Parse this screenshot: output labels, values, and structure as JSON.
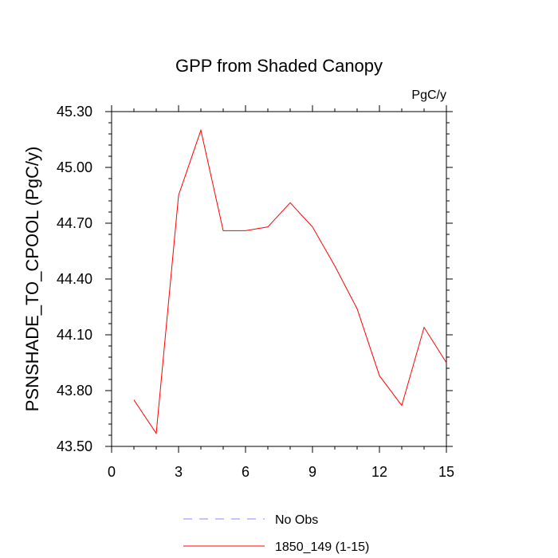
{
  "chart_data": {
    "type": "line",
    "title": "GPP from Shaded Canopy",
    "units_label": "PgC/y",
    "xlabel": "",
    "ylabel": "PSNSHADE_TO_CPOOL  (PgC/y)",
    "xlim": [
      0,
      15
    ],
    "ylim": [
      43.5,
      45.3
    ],
    "x_ticks": [
      0,
      3,
      6,
      9,
      12,
      15
    ],
    "x_tick_labels": [
      "0",
      "3",
      "6",
      "9",
      "12",
      "15"
    ],
    "y_ticks": [
      43.5,
      43.8,
      44.1,
      44.4,
      44.7,
      45.0,
      45.3
    ],
    "y_tick_labels": [
      "43.50",
      "43.80",
      "44.10",
      "44.40",
      "44.70",
      "45.00",
      "45.30"
    ],
    "grid": false,
    "legend_position": "bottom",
    "series": [
      {
        "name": "1850_149 (1-15)",
        "color": "#ff0000",
        "dash": "solid",
        "x": [
          1,
          2,
          3,
          4,
          5,
          6,
          7,
          8,
          9,
          10,
          11,
          12,
          13,
          14,
          15
        ],
        "y": [
          43.75,
          43.57,
          44.85,
          45.2,
          44.66,
          44.66,
          44.68,
          44.81,
          44.68,
          44.47,
          44.24,
          43.88,
          43.72,
          44.14,
          43.95
        ]
      }
    ],
    "legend": [
      {
        "label": "No Obs",
        "color": "#8a8aff",
        "dash": "dashed"
      },
      {
        "label": "1850_149 (1-15)",
        "color": "#ff0000",
        "dash": "solid"
      }
    ]
  }
}
